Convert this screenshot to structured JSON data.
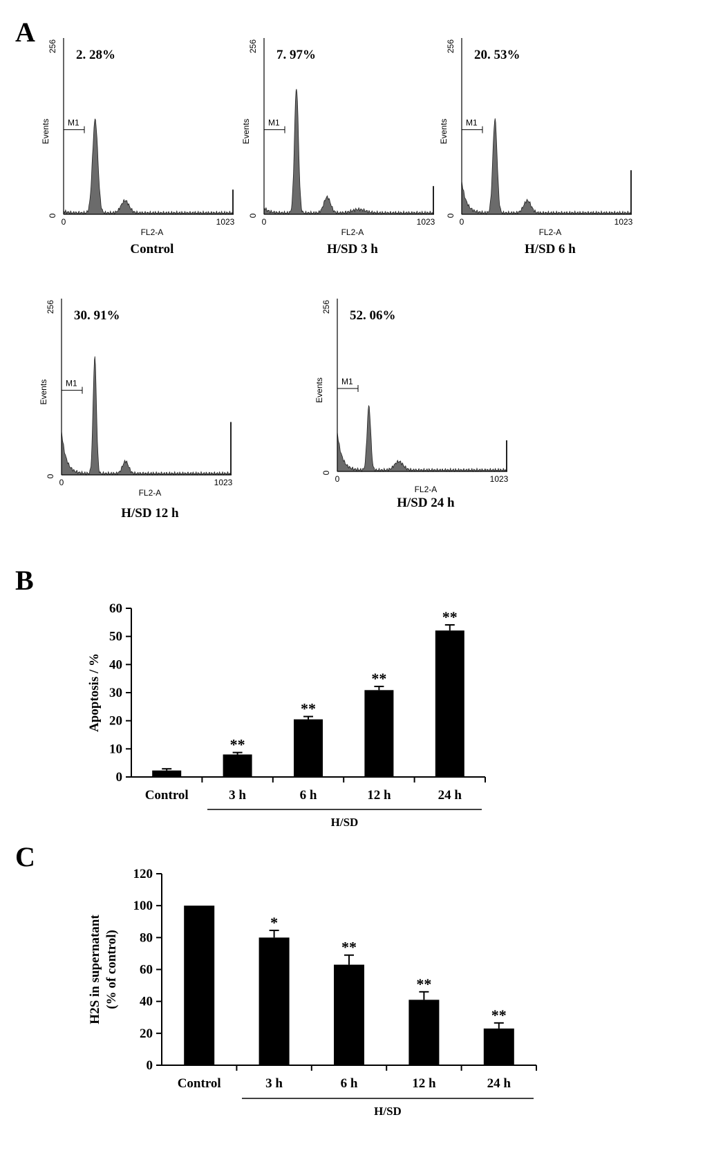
{
  "panels": {
    "a": "A",
    "b": "B",
    "c": "C"
  },
  "colors": {
    "fill": "#6b6b6b",
    "bar": "#000000"
  },
  "chart_data": [
    {
      "type": "area",
      "panel": "A",
      "histograms": [
        {
          "caption": "Control",
          "percent": "2. 28%",
          "marker": "M1",
          "ylabel": "Events",
          "xlabel": "FL2-A",
          "xmin": "0",
          "xmax": "1023",
          "ymin": "0",
          "ymax": "256",
          "peaks": [
            {
              "pos": 190,
              "height": 0.53,
              "width": 16
            },
            {
              "pos": 370,
              "height": 0.07,
              "width": 24
            }
          ],
          "debris": 0.01,
          "end_spike": 0.14
        },
        {
          "caption": "H/SD 3 h",
          "percent": "7. 97%",
          "marker": "M1",
          "ylabel": "Events",
          "xlabel": "FL2-A",
          "xmin": "0",
          "xmax": "1023",
          "ymin": "0",
          "ymax": "256",
          "peaks": [
            {
              "pos": 195,
              "height": 0.71,
              "width": 12
            },
            {
              "pos": 380,
              "height": 0.09,
              "width": 20
            },
            {
              "pos": 570,
              "height": 0.02,
              "width": 40
            }
          ],
          "debris": 0.03,
          "end_spike": 0.16
        },
        {
          "caption": "H/SD 6 h",
          "percent": "20. 53%",
          "marker": "M1",
          "ylabel": "Events",
          "xlabel": "FL2-A",
          "xmin": "0",
          "xmax": "1023",
          "ymin": "0",
          "ymax": "256",
          "peaks": [
            {
              "pos": 200,
              "height": 0.53,
              "width": 13
            },
            {
              "pos": 395,
              "height": 0.07,
              "width": 22
            }
          ],
          "debris": 0.18,
          "end_spike": 0.25
        },
        {
          "caption": "H/SD 12 h",
          "percent": "30. 91%",
          "marker": "M1",
          "ylabel": "Events",
          "xlabel": "FL2-A",
          "xmin": "0",
          "xmax": "1023",
          "ymin": "0",
          "ymax": "256",
          "peaks": [
            {
              "pos": 200,
              "height": 0.66,
              "width": 10
            },
            {
              "pos": 385,
              "height": 0.07,
              "width": 18
            }
          ],
          "debris": 0.24,
          "end_spike": 0.3
        },
        {
          "caption": "H/SD 24 h",
          "percent": "52. 06%",
          "marker": "M1",
          "ylabel": "Events",
          "xlabel": "FL2-A",
          "xmin": "0",
          "xmax": "1023",
          "ymin": "0",
          "ymax": "256",
          "peaks": [
            {
              "pos": 190,
              "height": 0.37,
              "width": 11
            },
            {
              "pos": 370,
              "height": 0.05,
              "width": 26
            }
          ],
          "debris": 0.22,
          "end_spike": 0.18
        }
      ]
    },
    {
      "type": "bar",
      "panel": "B",
      "categories": [
        "Control",
        "3 h",
        "6 h",
        "12 h",
        "24 h"
      ],
      "values": [
        2.3,
        8.0,
        20.5,
        30.9,
        52.1
      ],
      "errors": [
        0.6,
        0.7,
        1.0,
        1.3,
        2.0
      ],
      "significance": [
        "",
        "**",
        "**",
        "**",
        "**"
      ],
      "ylabel": "Apoptosis / %",
      "ylim": [
        0,
        60
      ],
      "yticks": [
        "0",
        "10",
        "20",
        "30",
        "40",
        "50",
        "60"
      ],
      "group_label": "H/SD"
    },
    {
      "type": "bar",
      "panel": "C",
      "categories": [
        "Control",
        "3 h",
        "6 h",
        "12 h",
        "24 h"
      ],
      "values": [
        100,
        80,
        63,
        41,
        23
      ],
      "errors": [
        0,
        4.5,
        6,
        5,
        3.5
      ],
      "significance": [
        "",
        "*",
        "**",
        "**",
        "**"
      ],
      "ylabel": [
        "H2S in supernatant",
        "(% of control)"
      ],
      "ylim": [
        0,
        120
      ],
      "yticks": [
        "0",
        "20",
        "40",
        "60",
        "80",
        "100",
        "120"
      ],
      "group_label": "H/SD"
    }
  ]
}
